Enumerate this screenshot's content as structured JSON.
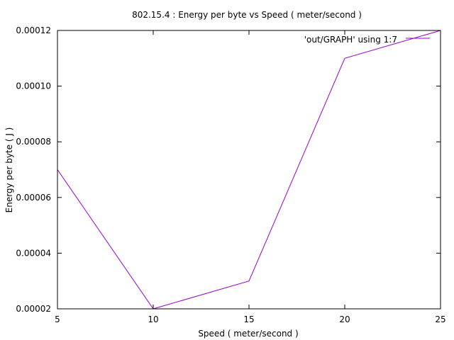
{
  "chart_data": {
    "type": "line",
    "title": "802.15.4 : Energy per byte vs Speed ( meter/second )",
    "xlabel": "Speed ( meter/second )",
    "ylabel": "Energy per byte ( J )",
    "xlim": [
      5,
      25
    ],
    "ylim": [
      2e-05,
      0.00012
    ],
    "xticks": [
      5,
      10,
      15,
      20,
      25
    ],
    "xtick_labels": [
      "5",
      "10",
      "15",
      "20",
      "25"
    ],
    "yticks": [
      2e-05,
      4e-05,
      6e-05,
      8e-05,
      0.0001,
      0.00012
    ],
    "ytick_labels": [
      "0.00002",
      "0.00004",
      "0.00006",
      "0.00008",
      "0.00010",
      "0.00012"
    ],
    "grid": false,
    "legend_position": "top-right",
    "series": [
      {
        "name": "'out/GRAPH' using 1:7",
        "color": "#9400d3",
        "x": [
          5,
          10,
          15,
          20,
          25
        ],
        "y": [
          7e-05,
          2e-05,
          3e-05,
          0.00011,
          0.00012
        ]
      }
    ]
  }
}
